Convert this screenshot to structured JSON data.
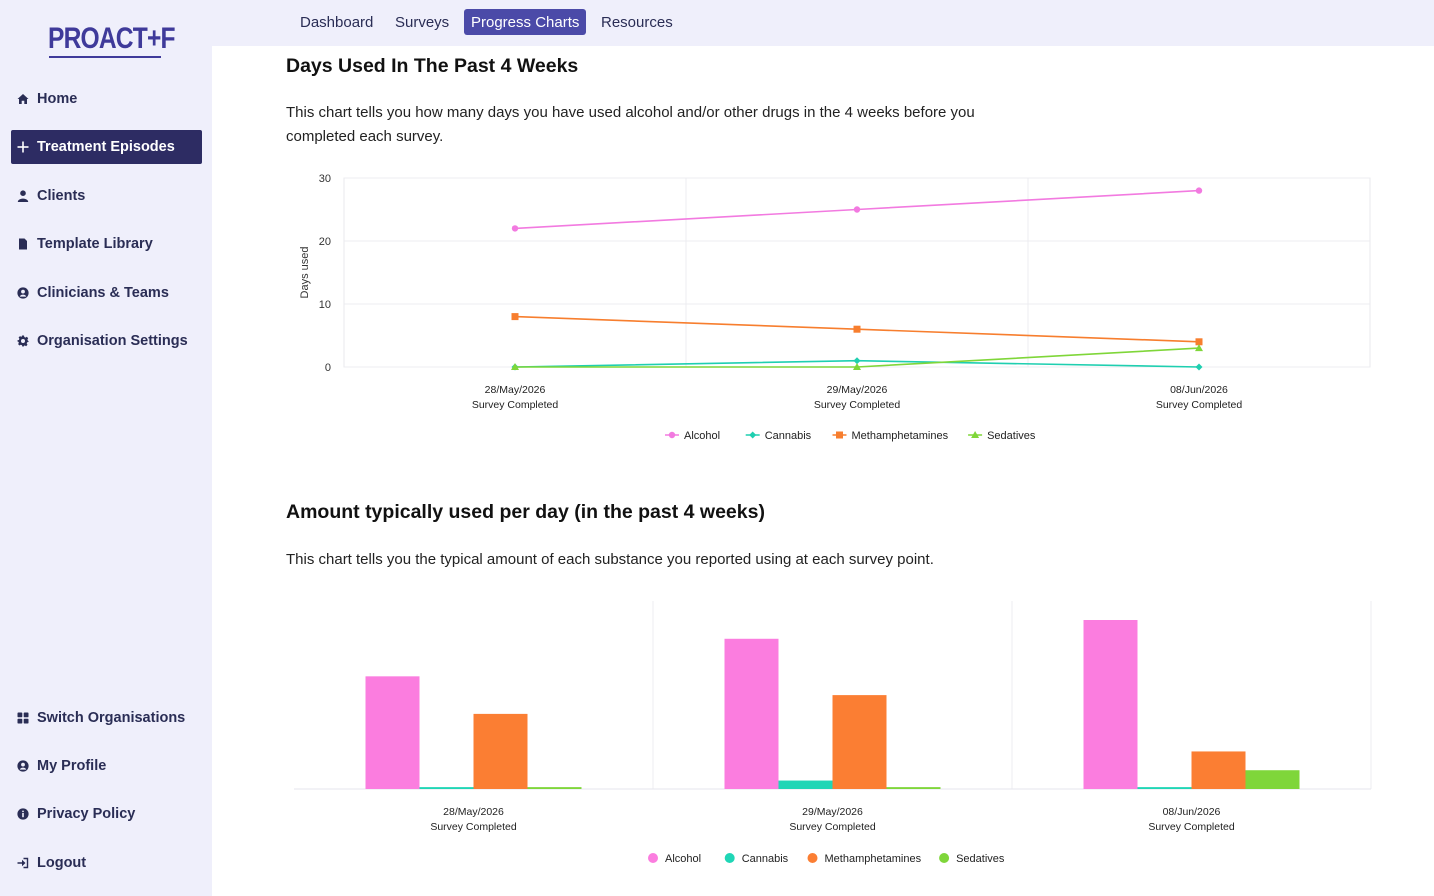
{
  "app": {
    "logo": "PROACT+F"
  },
  "sidebar": {
    "items": [
      {
        "label": "Home",
        "icon": "home-icon"
      },
      {
        "label": "Treatment Episodes",
        "icon": "plus-icon",
        "active": true
      },
      {
        "label": "Clients",
        "icon": "user-icon"
      },
      {
        "label": "Template Library",
        "icon": "file-icon"
      },
      {
        "label": "Clinicians & Teams",
        "icon": "user-circle-icon"
      },
      {
        "label": "Organisation Settings",
        "icon": "gear-icon"
      }
    ],
    "bottom_items": [
      {
        "label": "Switch Organisations",
        "icon": "grid-icon"
      },
      {
        "label": "My Profile",
        "icon": "user-circle-icon"
      },
      {
        "label": "Privacy Policy",
        "icon": "info-icon"
      },
      {
        "label": "Logout",
        "icon": "logout-icon"
      }
    ]
  },
  "topnav": {
    "tabs": [
      {
        "label": "Dashboard"
      },
      {
        "label": "Surveys"
      },
      {
        "label": "Progress Charts",
        "active": true
      },
      {
        "label": "Resources"
      }
    ]
  },
  "section1": {
    "title": "Days Used In The Past 4 Weeks",
    "description": "This chart tells you how many days you have used alcohol and/or other drugs in the 4 weeks before you completed each survey."
  },
  "section2": {
    "title": "Amount typically used per day (in the past 4 weeks)",
    "description": "This chart tells you the typical amount of each substance you reported using at each survey point."
  },
  "chart_data": [
    {
      "type": "line",
      "title": "",
      "xlabel": "",
      "ylabel": "Days used",
      "ylim": [
        0,
        30
      ],
      "yticks": [
        0,
        10,
        20,
        30
      ],
      "categories": [
        "28/May/2026",
        "29/May/2026",
        "08/Jun/2026"
      ],
      "category_sublabel": "Survey Completed",
      "grid": true,
      "legend": "bottom",
      "series": [
        {
          "name": "Alcohol",
          "values": [
            22,
            25,
            28
          ],
          "color": "#f27ae0",
          "marker": "circle"
        },
        {
          "name": "Cannabis",
          "values": [
            0,
            1,
            0
          ],
          "color": "#1fcfb0",
          "marker": "diamond"
        },
        {
          "name": "Methamphetamines",
          "values": [
            8,
            6,
            4
          ],
          "color": "#f77e2e",
          "marker": "square"
        },
        {
          "name": "Sedatives",
          "values": [
            0,
            0,
            3
          ],
          "color": "#7fd639",
          "marker": "triangle"
        }
      ]
    },
    {
      "type": "bar",
      "title": "",
      "xlabel": "",
      "ylabel": "",
      "categories": [
        "28/May/2026",
        "29/May/2026",
        "08/Jun/2026"
      ],
      "category_sublabel": "Survey Completed",
      "ymax": 180,
      "grid": false,
      "legend": "bottom",
      "series": [
        {
          "name": "Alcohol",
          "values": [
            120,
            160,
            180
          ],
          "color": "#fb7ddf"
        },
        {
          "name": "Cannabis",
          "values": [
            2,
            9,
            2
          ],
          "color": "#1fd6b6"
        },
        {
          "name": "Methamphetamines",
          "values": [
            80,
            100,
            40
          ],
          "color": "#fb7e33"
        },
        {
          "name": "Sedatives",
          "values": [
            2,
            2,
            20
          ],
          "color": "#7fd63a"
        }
      ]
    }
  ]
}
